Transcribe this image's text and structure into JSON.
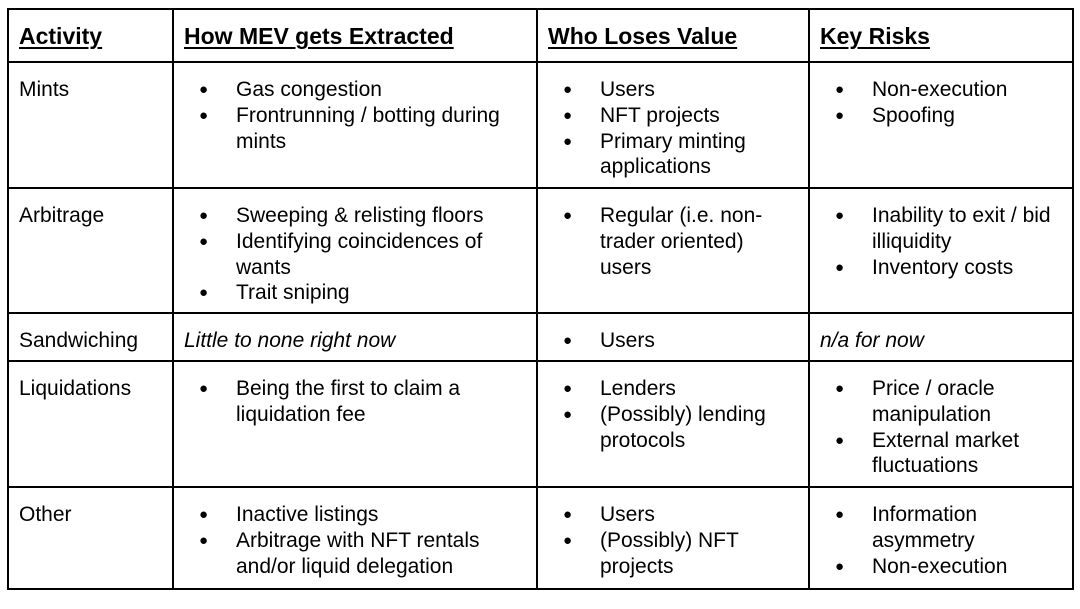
{
  "headers": [
    "Activity",
    "How MEV gets Extracted",
    "Who Loses Value",
    "Key Risks"
  ],
  "rows": [
    {
      "activity": "Mints",
      "how": [
        "Gas congestion",
        "Frontrunning / botting during mints"
      ],
      "who": [
        "Users",
        "NFT projects",
        "Primary minting applications"
      ],
      "risks": [
        "Non-execution",
        "Spoofing"
      ]
    },
    {
      "activity": "Arbitrage",
      "how": [
        "Sweeping & relisting floors",
        "Identifying coincidences of wants",
        "Trait sniping"
      ],
      "who": [
        "Regular (i.e. non-trader oriented) users"
      ],
      "risks": [
        "Inability to exit / bid illiquidity",
        "Inventory costs"
      ]
    },
    {
      "activity": "Sandwiching",
      "how_text": "Little to none right now",
      "who": [
        "Users"
      ],
      "risks_text": "n/a for now"
    },
    {
      "activity": "Liquidations",
      "how": [
        "Being the first to claim a liquidation fee"
      ],
      "who": [
        "Lenders",
        "(Possibly) lending protocols"
      ],
      "risks": [
        "Price / oracle manipulation",
        "External market fluctuations"
      ]
    },
    {
      "activity": "Other",
      "how": [
        "Inactive listings",
        "Arbitrage with NFT rentals and/or liquid delegation"
      ],
      "who": [
        "Users",
        "(Possibly) NFT projects"
      ],
      "risks": [
        "Information asymmetry",
        "Non-execution"
      ]
    }
  ]
}
